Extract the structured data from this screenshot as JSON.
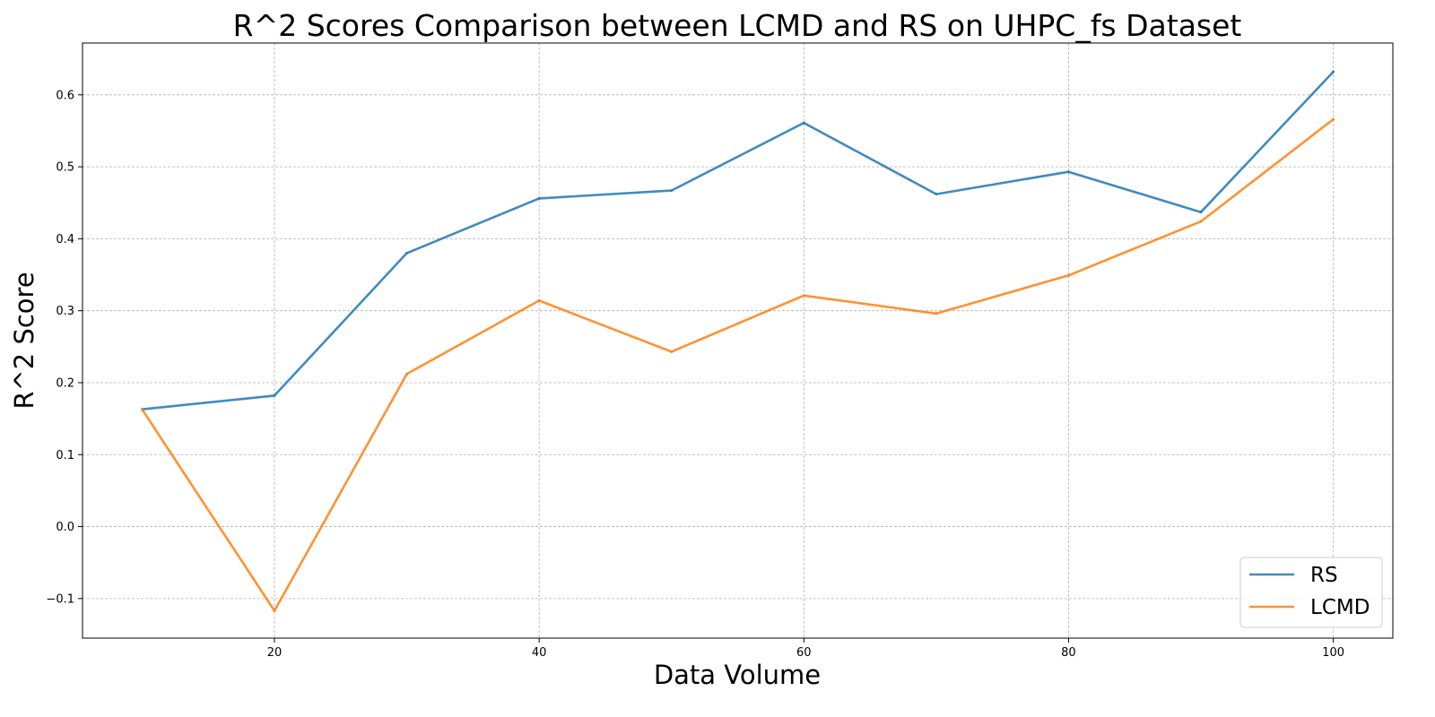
{
  "chart_data": {
    "type": "line",
    "title": "R^2 Scores Comparison between LCMD and RS on UHPC_fs Dataset",
    "xlabel": "Data Volume",
    "ylabel": "R^2 Score",
    "x": [
      10,
      20,
      30,
      40,
      50,
      60,
      70,
      80,
      90,
      100
    ],
    "series": [
      {
        "name": "RS",
        "color": "#1f77b4",
        "values": [
          0.163,
          0.182,
          0.38,
          0.456,
          0.467,
          0.561,
          0.462,
          0.493,
          0.437,
          0.632
        ]
      },
      {
        "name": "LCMD",
        "color": "#ff7f0e",
        "values": [
          0.163,
          -0.117,
          0.212,
          0.314,
          0.243,
          0.321,
          0.296,
          0.349,
          0.424,
          0.566
        ]
      }
    ],
    "xlim": [
      5.5,
      104.5
    ],
    "ylim": [
      -0.155,
      0.672
    ],
    "xticks": [
      20,
      40,
      60,
      80,
      100
    ],
    "yticks": [
      -0.1,
      0.0,
      0.1,
      0.2,
      0.3,
      0.4,
      0.5,
      0.6
    ],
    "xtick_labels": [
      "20",
      "40",
      "60",
      "80",
      "100"
    ],
    "ytick_labels": [
      "−0.1",
      "0.0",
      "0.1",
      "0.2",
      "0.3",
      "0.4",
      "0.5",
      "0.6"
    ],
    "grid": true,
    "legend_position": "lower-right"
  }
}
